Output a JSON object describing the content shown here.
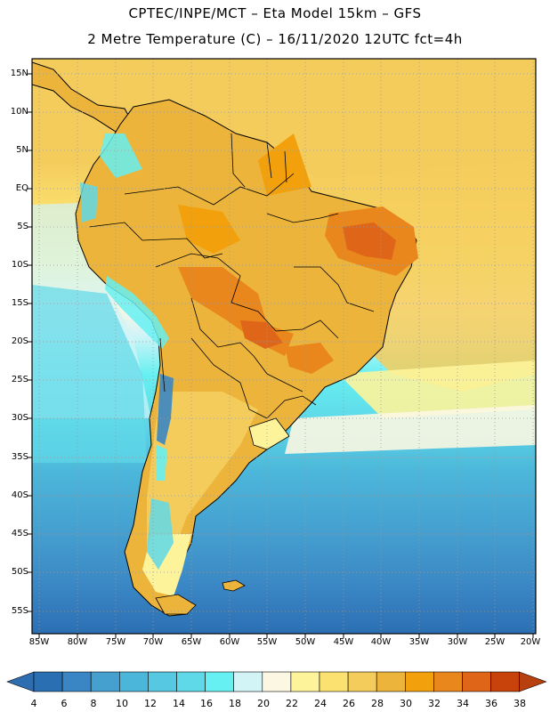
{
  "header": {
    "title_line1": "CPTEC/INPE/MCT –  Eta Model 15km – GFS",
    "title_line2": "2 Metre Temperature (C) – 16/11/2020 12UTC fct=4h"
  },
  "axes": {
    "lat_labels": [
      "15N",
      "10N",
      "5N",
      "EQ",
      "5S",
      "10S",
      "15S",
      "20S",
      "25S",
      "30S",
      "35S",
      "40S",
      "45S",
      "50S",
      "55S"
    ],
    "lon_labels": [
      "85W",
      "80W",
      "75W",
      "70W",
      "65W",
      "60W",
      "55W",
      "50W",
      "45W",
      "40W",
      "35W",
      "30W",
      "25W",
      "20W"
    ]
  },
  "colorbar": {
    "labels": [
      "4",
      "6",
      "8",
      "10",
      "12",
      "14",
      "16",
      "18",
      "20",
      "22",
      "24",
      "26",
      "28",
      "30",
      "32",
      "34",
      "36",
      "38"
    ],
    "colors": [
      "#2b6fb3",
      "#3a86c4",
      "#45a0d0",
      "#4cb6da",
      "#56c8e1",
      "#5fd8e8",
      "#66f0f2",
      "#d2f4f7",
      "#fbf7e2",
      "#fdf39a",
      "#fbe16f",
      "#f4cc5c",
      "#ecb43a",
      "#f2a00c",
      "#e9861c",
      "#df6519",
      "#c8430b"
    ],
    "low_color": "#2f6db1",
    "high_color": "#b8400e"
  }
}
